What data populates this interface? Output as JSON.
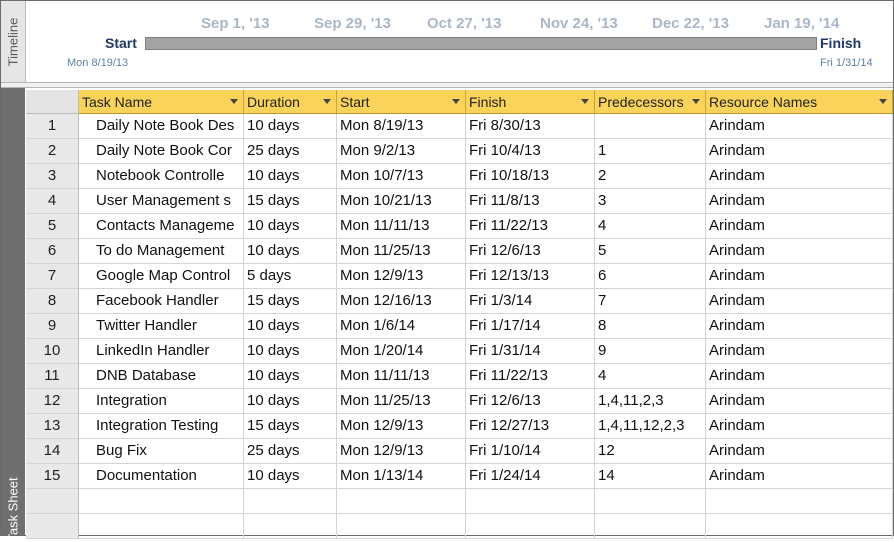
{
  "timeline": {
    "side_label": "Timeline",
    "ticks": [
      "Sep 1, '13",
      "Sep 29, '13",
      "Oct 27, '13",
      "Nov 24, '13",
      "Dec 22, '13",
      "Jan 19, '14"
    ],
    "start_label": "Start",
    "finish_label": "Finish",
    "start_date": "Mon 8/19/13",
    "finish_date": "Fri 1/31/14"
  },
  "task_sheet": {
    "side_label": "Task Sheet",
    "columns": [
      "Task Name",
      "Duration",
      "Start",
      "Finish",
      "Predecessors",
      "Resource Names"
    ],
    "rows": [
      {
        "id": "1",
        "name": "Daily Note Book Des",
        "duration": "10 days",
        "start": "Mon 8/19/13",
        "finish": "Fri 8/30/13",
        "pred": "",
        "res": "Arindam"
      },
      {
        "id": "2",
        "name": "Daily Note Book Cor",
        "duration": "25 days",
        "start": "Mon 9/2/13",
        "finish": "Fri 10/4/13",
        "pred": "1",
        "res": "Arindam"
      },
      {
        "id": "3",
        "name": "Notebook Controlle",
        "duration": "10 days",
        "start": "Mon 10/7/13",
        "finish": "Fri 10/18/13",
        "pred": "2",
        "res": "Arindam"
      },
      {
        "id": "4",
        "name": "User Management s",
        "duration": "15 days",
        "start": "Mon 10/21/13",
        "finish": "Fri 11/8/13",
        "pred": "3",
        "res": "Arindam"
      },
      {
        "id": "5",
        "name": "Contacts Manageme",
        "duration": "10 days",
        "start": "Mon 11/11/13",
        "finish": "Fri 11/22/13",
        "pred": "4",
        "res": "Arindam"
      },
      {
        "id": "6",
        "name": "To do Management",
        "duration": "10 days",
        "start": "Mon 11/25/13",
        "finish": "Fri 12/6/13",
        "pred": "5",
        "res": "Arindam"
      },
      {
        "id": "7",
        "name": "Google Map Control",
        "duration": "5 days",
        "start": "Mon 12/9/13",
        "finish": "Fri 12/13/13",
        "pred": "6",
        "res": "Arindam"
      },
      {
        "id": "8",
        "name": "Facebook Handler",
        "duration": "15 days",
        "start": "Mon 12/16/13",
        "finish": "Fri 1/3/14",
        "pred": "7",
        "res": "Arindam"
      },
      {
        "id": "9",
        "name": "Twitter  Handler",
        "duration": "10 days",
        "start": "Mon 1/6/14",
        "finish": "Fri 1/17/14",
        "pred": "8",
        "res": "Arindam"
      },
      {
        "id": "10",
        "name": "LinkedIn Handler",
        "duration": "10 days",
        "start": "Mon 1/20/14",
        "finish": "Fri 1/31/14",
        "pred": "9",
        "res": "Arindam"
      },
      {
        "id": "11",
        "name": "DNB Database",
        "duration": "10 days",
        "start": "Mon 11/11/13",
        "finish": "Fri 11/22/13",
        "pred": "4",
        "res": "Arindam"
      },
      {
        "id": "12",
        "name": "Integration",
        "duration": "10 days",
        "start": "Mon 11/25/13",
        "finish": "Fri 12/6/13",
        "pred": "1,4,11,2,3",
        "res": "Arindam"
      },
      {
        "id": "13",
        "name": "Integration Testing",
        "duration": "15 days",
        "start": "Mon 12/9/13",
        "finish": "Fri 12/27/13",
        "pred": "1,4,11,12,2,3",
        "res": "Arindam"
      },
      {
        "id": "14",
        "name": "Bug Fix",
        "duration": "25 days",
        "start": "Mon 12/9/13",
        "finish": "Fri 1/10/14",
        "pred": "12",
        "res": "Arindam"
      },
      {
        "id": "15",
        "name": "Documentation",
        "duration": "10 days",
        "start": "Mon 1/13/14",
        "finish": "Fri 1/24/14",
        "pred": "14",
        "res": "Arindam"
      }
    ]
  }
}
